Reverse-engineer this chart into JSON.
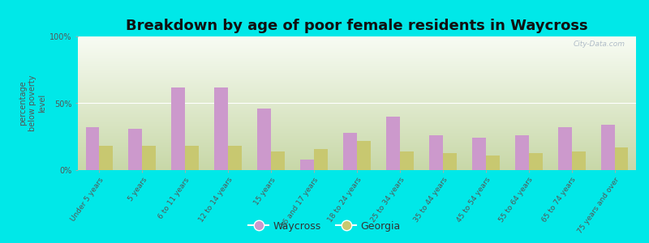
{
  "title": "Breakdown by age of poor female residents in Waycross",
  "ylabel": "percentage\nbelow poverty\nlevel",
  "fig_bg": "#00e8e8",
  "plot_bg_bottom": "#c8d8a8",
  "plot_bg_top": "#f8fcf4",
  "categories": [
    "Under 5 years",
    "5 years",
    "6 to 11 years",
    "12 to 14 years",
    "15 years",
    "16 and 17 years",
    "18 to 24 years",
    "25 to 34 years",
    "35 to 44 years",
    "45 to 54 years",
    "55 to 64 years",
    "65 to 74 years",
    "75 years and over"
  ],
  "waycross_values": [
    32,
    31,
    62,
    62,
    46,
    8,
    28,
    40,
    26,
    24,
    26,
    32,
    34
  ],
  "georgia_values": [
    18,
    18,
    18,
    18,
    14,
    16,
    22,
    14,
    13,
    11,
    13,
    14,
    17
  ],
  "waycross_color": "#cc99cc",
  "georgia_color": "#c8c870",
  "ylim": [
    0,
    100
  ],
  "yticks": [
    0,
    50,
    100
  ],
  "ytick_labels": [
    "0%",
    "50%",
    "100%"
  ],
  "legend_waycross": "Waycross",
  "legend_georgia": "Georgia",
  "title_fontsize": 13,
  "ylabel_fontsize": 7,
  "xtick_fontsize": 6.5,
  "ytick_fontsize": 7,
  "legend_fontsize": 9,
  "watermark": "City-Data.com",
  "bar_width": 0.32
}
